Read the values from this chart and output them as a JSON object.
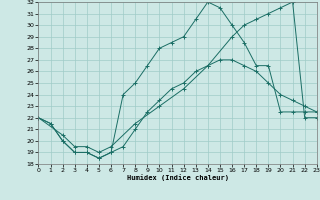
{
  "xlabel": "Humidex (Indice chaleur)",
  "background_color": "#cde8e5",
  "grid_color": "#a0ccc8",
  "line_color": "#1a6e65",
  "xlim": [
    0,
    23
  ],
  "ylim": [
    18,
    32
  ],
  "yticks": [
    18,
    19,
    20,
    21,
    22,
    23,
    24,
    25,
    26,
    27,
    28,
    29,
    30,
    31,
    32
  ],
  "xticks": [
    0,
    1,
    2,
    3,
    4,
    5,
    6,
    7,
    8,
    9,
    10,
    11,
    12,
    13,
    14,
    15,
    16,
    17,
    18,
    19,
    20,
    21,
    22,
    23
  ],
  "line1_x": [
    0,
    1,
    2,
    3,
    4,
    5,
    6,
    7,
    8,
    9,
    10,
    11,
    12,
    13,
    14,
    15,
    16,
    17,
    18,
    19,
    20,
    21,
    22,
    23
  ],
  "line1_y": [
    22,
    21.5,
    20,
    19,
    19,
    18.5,
    19,
    24,
    25,
    26.5,
    28,
    28.5,
    29,
    30.5,
    32,
    31.5,
    30,
    28.5,
    26.5,
    26.5,
    22.5,
    22.5,
    22.5,
    22.5
  ],
  "line2_x": [
    0,
    1,
    2,
    3,
    4,
    5,
    6,
    7,
    8,
    9,
    10,
    11,
    12,
    13,
    14,
    15,
    16,
    17,
    18,
    19,
    20,
    21,
    22,
    23
  ],
  "line2_y": [
    22,
    21.5,
    20,
    19,
    19,
    18.5,
    19,
    19.5,
    21,
    22.5,
    23.5,
    24.5,
    25,
    26,
    26.5,
    27,
    27,
    26.5,
    26,
    25,
    24,
    23.5,
    23,
    22.5
  ],
  "line3_x": [
    0,
    2,
    3,
    4,
    5,
    6,
    8,
    10,
    12,
    14,
    16,
    17,
    18,
    19,
    20,
    21,
    22,
    23
  ],
  "line3_y": [
    22,
    20.5,
    19.5,
    19.5,
    19,
    19.5,
    21.5,
    23,
    24.5,
    26.5,
    29,
    30,
    30.5,
    31,
    31.5,
    32,
    22,
    22
  ]
}
